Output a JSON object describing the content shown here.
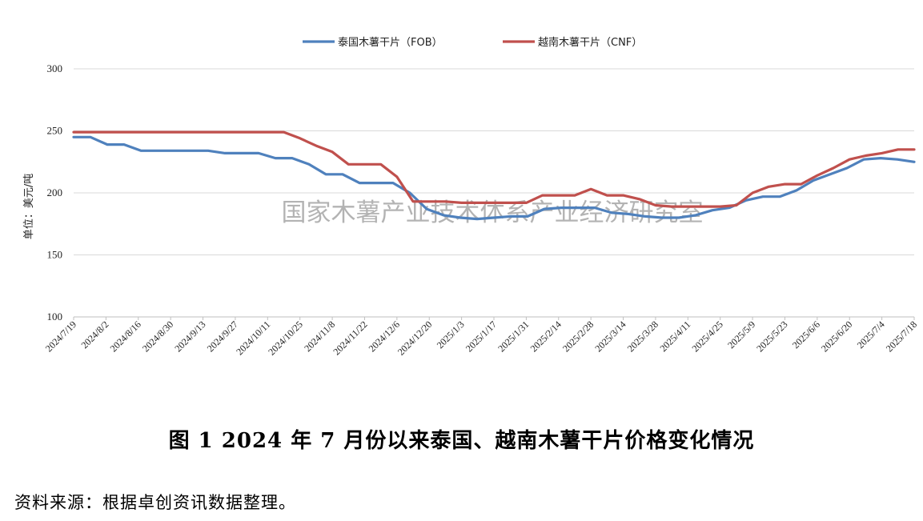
{
  "caption": "图 1   2024 年 7 月份以来泰国、越南木薯干片价格变化情况",
  "source_note": "资料来源：根据卓创资讯数据整理。",
  "watermark": "国家木薯产业技术体系产业经济研究室",
  "chart_data": {
    "type": "line",
    "title": "",
    "xlabel": "",
    "ylabel": "单位：美元/吨",
    "ylim": [
      100,
      300
    ],
    "yticks": [
      100,
      150,
      200,
      250,
      300
    ],
    "grid": "horizontal",
    "legend_position": "top-center",
    "x_tick_labels": [
      "2024/7/19",
      "2024/8/2",
      "2024/8/16",
      "2024/8/30",
      "2024/9/13",
      "2024/9/27",
      "2024/10/11",
      "2024/10/25",
      "2024/11/8",
      "2024/11/22",
      "2024/12/6",
      "2024/12/20",
      "2025/1/3",
      "2025/1/17",
      "2025/1/31",
      "2025/2/14",
      "2025/2/28",
      "2025/3/14",
      "2025/3/28",
      "2025/4/11",
      "2025/4/25",
      "2025/5/9",
      "2025/5/23",
      "2025/6/6",
      "2025/6/20",
      "2025/7/4",
      "2025/7/18"
    ],
    "series": [
      {
        "name": "泰国木薯干片（FOB）",
        "color": "#4F81BD",
        "values": [
          245,
          245,
          239,
          239,
          234,
          234,
          234,
          234,
          234,
          232,
          232,
          232,
          228,
          228,
          223,
          215,
          215,
          208,
          208,
          208,
          200,
          187,
          182,
          180,
          179,
          180,
          181,
          181,
          187,
          188,
          188,
          188,
          184,
          183,
          181,
          180,
          180,
          182,
          186,
          188,
          194,
          197,
          197,
          202,
          210,
          215,
          220,
          227,
          228,
          227,
          225
        ]
      },
      {
        "name": "越南木薯干片（CNF）",
        "color": "#C0504D",
        "values": [
          249,
          249,
          249,
          249,
          249,
          249,
          249,
          249,
          249,
          249,
          249,
          249,
          249,
          249,
          244,
          238,
          233,
          223,
          223,
          223,
          213,
          193,
          193,
          193,
          192,
          192,
          192,
          192,
          192,
          198,
          198,
          198,
          203,
          198,
          198,
          195,
          190,
          189,
          189,
          189,
          189,
          190,
          200,
          205,
          207,
          207,
          214,
          220,
          227,
          230,
          232,
          235,
          235
        ]
      }
    ]
  }
}
